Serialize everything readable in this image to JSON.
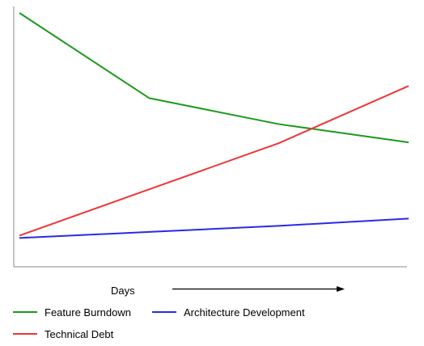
{
  "chart_data": {
    "type": "line",
    "xlabel": "Days",
    "ylabel": "",
    "x": [
      0,
      1,
      2,
      3
    ],
    "xlim": [
      0,
      3
    ],
    "ylim": [
      0,
      100
    ],
    "grid": false,
    "legend_position": "bottom",
    "series": [
      {
        "name": "Feature Burndown",
        "color": "#1a9a1a",
        "values": [
          100,
          65,
          54.3,
          46.8
        ]
      },
      {
        "name": "Technical Debt",
        "color": "#ee3535",
        "values": [
          8.5,
          27.5,
          46.5,
          70
        ]
      },
      {
        "name": "Architecture Development",
        "color": "#2a2ae8",
        "values": [
          7.5,
          10,
          12.5,
          15.5
        ]
      }
    ]
  }
}
